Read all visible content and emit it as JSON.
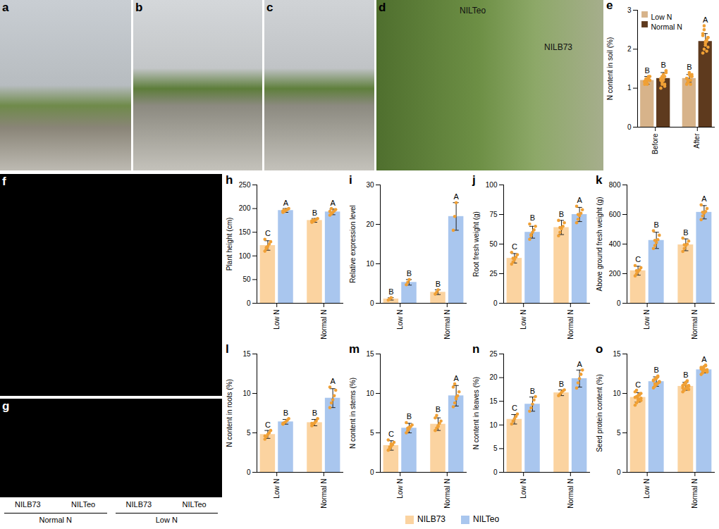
{
  "chart_data": [
    {
      "type": "bar",
      "panel": "e",
      "y_label": "N content in soil (%)",
      "categories": [
        "Before",
        "After"
      ],
      "ylim": [
        0,
        3
      ],
      "yticks": [
        0,
        1,
        2,
        3
      ],
      "legend": "top-left",
      "series": [
        {
          "name": "Low N",
          "color": "#d7b38a",
          "values": [
            1.2,
            1.25
          ],
          "error": [
            0.1,
            0.1
          ],
          "letters": [
            "B",
            "B"
          ],
          "points": [
            [
              1.1,
              1.15,
              1.2,
              1.25,
              1.3,
              1.18,
              1.22,
              1.12,
              1.28,
              1.2,
              1.16,
              1.24,
              1.1,
              1.3,
              1.2
            ],
            [
              1.1,
              1.15,
              1.2,
              1.3,
              1.35,
              1.25,
              1.2,
              1.4,
              1.1,
              1.3,
              1.25,
              1.15,
              1.35,
              1.2,
              1.3
            ]
          ]
        },
        {
          "name": "Normal N",
          "color": "#5e3a1e",
          "values": [
            1.25,
            2.2
          ],
          "error": [
            0.15,
            0.2
          ],
          "letters": [
            "B",
            "A"
          ],
          "points": [
            [
              1.0,
              1.1,
              1.2,
              1.3,
              1.4,
              1.25,
              1.15,
              1.35,
              1.05,
              1.45,
              1.2,
              1.3,
              1.25,
              1.1,
              1.4
            ],
            [
              1.9,
              2.0,
              2.1,
              2.2,
              2.3,
              2.4,
              2.6,
              2.15,
              2.25,
              2.05,
              2.35,
              2.5,
              2.2,
              1.95,
              2.3
            ]
          ]
        }
      ]
    },
    {
      "type": "bar",
      "panel": "h",
      "y_label": "Plant height (cm)",
      "categories": [
        "Low N",
        "Normal N"
      ],
      "ylim": [
        0,
        250
      ],
      "yticks": [
        0,
        50,
        100,
        150,
        200,
        250
      ],
      "series": [
        {
          "name": "NILB73",
          "color": "#fbd3a0",
          "values": [
            122,
            175
          ],
          "error": [
            10,
            4
          ],
          "letters": [
            "C",
            "B"
          ],
          "points": [
            [
              110,
              115,
              120,
              125,
              130,
              135,
              118
            ],
            [
              171,
              173,
              175,
              177,
              179,
              174,
              176
            ]
          ]
        },
        {
          "name": "NILTeo",
          "color": "#a9c6ee",
          "values": [
            196,
            193
          ],
          "error": [
            4,
            6
          ],
          "letters": [
            "A",
            "A"
          ],
          "points": [
            [
              192,
              194,
              196,
              198,
              200,
              195,
              197
            ],
            [
              186,
              189,
              192,
              195,
              198,
              194,
              200
            ]
          ]
        }
      ]
    },
    {
      "type": "bar",
      "panel": "i",
      "y_label": "Relative expression level",
      "categories": [
        "Low N",
        "Normal N"
      ],
      "ylim": [
        0,
        30
      ],
      "yticks": [
        0,
        10,
        20,
        30
      ],
      "series": [
        {
          "name": "NILB73",
          "color": "#fbd3a0",
          "values": [
            1.1,
            2.8
          ],
          "error": [
            0.3,
            0.6
          ],
          "letters": [
            "B",
            "B"
          ],
          "points": [
            [
              0.8,
              1.1,
              1.4
            ],
            [
              2.3,
              2.8,
              3.4
            ]
          ]
        },
        {
          "name": "NILTeo",
          "color": "#a9c6ee",
          "values": [
            5.3,
            22
          ],
          "error": [
            0.7,
            3.5
          ],
          "letters": [
            "B",
            "A"
          ],
          "points": [
            [
              4.7,
              5.3,
              6
            ],
            [
              18.5,
              22,
              25.5
            ]
          ]
        }
      ]
    },
    {
      "type": "bar",
      "panel": "j",
      "y_label": "Root fresh weight (g)",
      "categories": [
        "Low N",
        "Normal N"
      ],
      "ylim": [
        0,
        100
      ],
      "yticks": [
        0,
        25,
        50,
        75,
        100
      ],
      "series": [
        {
          "name": "NILB73",
          "color": "#fbd3a0",
          "values": [
            38,
            64
          ],
          "error": [
            4,
            6
          ],
          "letters": [
            "C",
            "B"
          ],
          "points": [
            [
              33,
              35,
              37,
              39,
              41,
              43,
              38
            ],
            [
              57,
              60,
              63,
              65,
              68,
              70,
              64
            ]
          ]
        },
        {
          "name": "NILTeo",
          "color": "#a9c6ee",
          "values": [
            60,
            75
          ],
          "error": [
            5,
            6
          ],
          "letters": [
            "B",
            "A"
          ],
          "points": [
            [
              54,
              57,
              60,
              62,
              65,
              67,
              58
            ],
            [
              68,
              71,
              74,
              76,
              79,
              82,
              75
            ]
          ]
        }
      ]
    },
    {
      "type": "bar",
      "panel": "k",
      "y_label": "Above ground fresh weight (g)",
      "categories": [
        "Low N",
        "Normal N"
      ],
      "ylim": [
        0,
        800
      ],
      "yticks": [
        0,
        200,
        400,
        600,
        800
      ],
      "series": [
        {
          "name": "NILB73",
          "color": "#fbd3a0",
          "values": [
            220,
            395
          ],
          "error": [
            30,
            40
          ],
          "letters": [
            "C",
            "B"
          ],
          "points": [
            [
              185,
              200,
              215,
              225,
              240,
              255,
              220
            ],
            [
              350,
              370,
              390,
              400,
              420,
              440,
              395
            ]
          ]
        },
        {
          "name": "NILTeo",
          "color": "#a9c6ee",
          "values": [
            425,
            615
          ],
          "error": [
            55,
            45
          ],
          "letters": [
            "B",
            "A"
          ],
          "points": [
            [
              370,
              390,
              410,
              430,
              460,
              490,
              425
            ],
            [
              565,
              590,
              610,
              620,
              640,
              665,
              615
            ]
          ]
        }
      ]
    },
    {
      "type": "bar",
      "panel": "l",
      "y_label": "N content in roots (%)",
      "categories": [
        "Low N",
        "Normal N"
      ],
      "ylim": [
        0,
        15
      ],
      "yticks": [
        0,
        5,
        10,
        15
      ],
      "series": [
        {
          "name": "NILB73",
          "color": "#fbd3a0",
          "values": [
            4.8,
            6.3
          ],
          "error": [
            0.5,
            0.4
          ],
          "letters": [
            "C",
            "B"
          ],
          "points": [
            [
              4.2,
              4.5,
              4.8,
              5.0,
              5.3,
              4.6
            ],
            [
              5.9,
              6.1,
              6.3,
              6.5,
              6.8,
              6.2
            ]
          ]
        },
        {
          "name": "NILTeo",
          "color": "#a9c6ee",
          "values": [
            6.4,
            9.4
          ],
          "error": [
            0.3,
            1.2
          ],
          "letters": [
            "B",
            "A"
          ],
          "points": [
            [
              6.1,
              6.3,
              6.4,
              6.6,
              6.8,
              6.2
            ],
            [
              8.2,
              8.8,
              9.2,
              9.7,
              10.4,
              10.8
            ]
          ]
        }
      ]
    },
    {
      "type": "bar",
      "panel": "m",
      "y_label": "N content in stems (%)",
      "categories": [
        "Low N",
        "Normal N"
      ],
      "ylim": [
        0,
        15
      ],
      "yticks": [
        0,
        5,
        10,
        15
      ],
      "series": [
        {
          "name": "NILB73",
          "color": "#fbd3a0",
          "values": [
            3.4,
            6.1
          ],
          "error": [
            0.6,
            0.8
          ],
          "letters": [
            "C",
            "B"
          ],
          "points": [
            [
              2.8,
              3.0,
              3.3,
              3.5,
              3.8,
              4.1,
              3.2,
              3.6
            ],
            [
              5.3,
              5.6,
              5.9,
              6.2,
              6.5,
              6.9,
              7.2,
              5.8
            ]
          ]
        },
        {
          "name": "NILTeo",
          "color": "#a9c6ee",
          "values": [
            5.6,
            9.7
          ],
          "error": [
            0.6,
            1.3
          ],
          "letters": [
            "B",
            "A"
          ],
          "points": [
            [
              5.0,
              5.3,
              5.5,
              5.8,
              6.0,
              6.3,
              5.6,
              5.7
            ],
            [
              8.3,
              8.8,
              9.3,
              9.7,
              10.2,
              10.8,
              11.2,
              9.5
            ]
          ]
        }
      ]
    },
    {
      "type": "bar",
      "panel": "n",
      "y_label": "N content in leaves (%)",
      "categories": [
        "Low N",
        "Normal N"
      ],
      "ylim": [
        0,
        25
      ],
      "yticks": [
        0,
        5,
        10,
        15,
        20,
        25
      ],
      "legend": "bottom",
      "series": [
        {
          "name": "NILB73",
          "color": "#fbd3a0",
          "values": [
            11.2,
            16.8
          ],
          "error": [
            1,
            0.6
          ],
          "letters": [
            "C",
            "B"
          ],
          "points": [
            [
              10.2,
              10.8,
              11.3,
              11.8,
              12.3
            ],
            [
              16.2,
              16.5,
              16.9,
              17.2,
              17.4
            ]
          ]
        },
        {
          "name": "NILTeo",
          "color": "#a9c6ee",
          "values": [
            14.4,
            19.8
          ],
          "error": [
            1.5,
            1.8
          ],
          "letters": [
            "B",
            "A"
          ],
          "points": [
            [
              12.9,
              13.6,
              14.4,
              15.3,
              16.0
            ],
            [
              17.8,
              18.9,
              19.8,
              20.7,
              21.6
            ]
          ]
        }
      ]
    },
    {
      "type": "bar",
      "panel": "o",
      "y_label": "Seed protein content (%)",
      "categories": [
        "Low N",
        "Normal N"
      ],
      "ylim": [
        0,
        15
      ],
      "yticks": [
        0,
        5,
        10,
        15
      ],
      "series": [
        {
          "name": "NILB73",
          "color": "#fbd3a0",
          "values": [
            9.5,
            10.9
          ],
          "error": [
            0.6,
            0.5
          ],
          "letters": [
            "C",
            "B"
          ],
          "points": [
            [
              8.5,
              8.8,
              9.0,
              9.2,
              9.4,
              9.5,
              9.6,
              9.7,
              9.8,
              10.0,
              10.2,
              10.4,
              9.3,
              9.9,
              9.1
            ],
            [
              10.2,
              10.4,
              10.6,
              10.8,
              10.9,
              11.0,
              11.2,
              11.4,
              11.6,
              10.5,
              10.7,
              11.1,
              11.3,
              10.9,
              11.0
            ]
          ]
        },
        {
          "name": "NILTeo",
          "color": "#a9c6ee",
          "values": [
            11.5,
            13.0
          ],
          "error": [
            0.6,
            0.4
          ],
          "letters": [
            "B",
            "A"
          ],
          "points": [
            [
              10.7,
              10.9,
              11.1,
              11.3,
              11.5,
              11.6,
              11.8,
              12.0,
              12.2,
              11.4,
              11.7,
              11.2,
              11.9,
              12.1,
              11.5
            ],
            [
              12.4,
              12.6,
              12.8,
              12.9,
              13.0,
              13.1,
              13.2,
              13.4,
              13.6,
              12.7,
              13.3,
              12.9,
              13.0,
              13.5,
              12.8
            ]
          ]
        }
      ]
    }
  ],
  "photos": [
    {
      "panel": "a"
    },
    {
      "panel": "b"
    },
    {
      "panel": "c"
    },
    {
      "panel": "d",
      "labels": [
        "NILTeo",
        "NILB73"
      ]
    },
    {
      "panel": "f"
    },
    {
      "panel": "g",
      "labels": [
        "NILB73",
        "NILTeo",
        "NILB73",
        "NILTeo"
      ],
      "groups": [
        "Normal N",
        "Low N"
      ]
    }
  ]
}
